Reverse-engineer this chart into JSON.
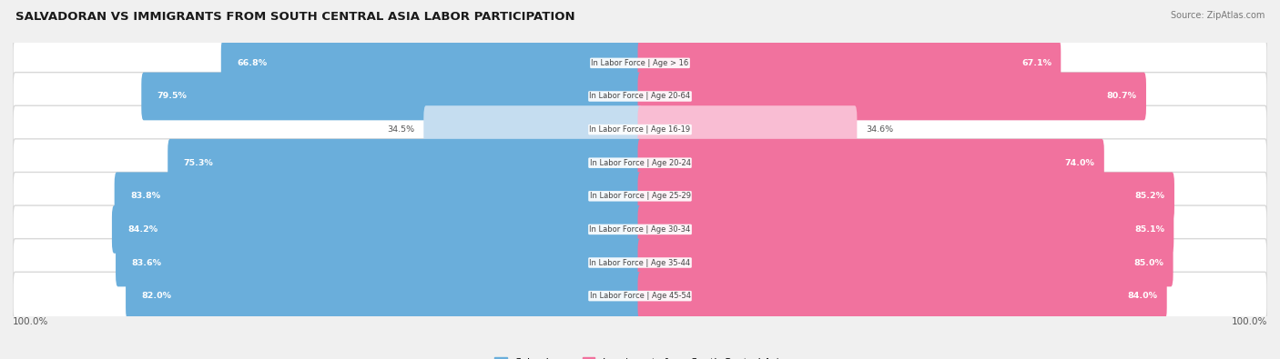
{
  "title": "SALVADORAN VS IMMIGRANTS FROM SOUTH CENTRAL ASIA LABOR PARTICIPATION",
  "source": "Source: ZipAtlas.com",
  "categories": [
    "In Labor Force | Age > 16",
    "In Labor Force | Age 20-64",
    "In Labor Force | Age 16-19",
    "In Labor Force | Age 20-24",
    "In Labor Force | Age 25-29",
    "In Labor Force | Age 30-34",
    "In Labor Force | Age 35-44",
    "In Labor Force | Age 45-54"
  ],
  "salvadoran_values": [
    66.8,
    79.5,
    34.5,
    75.3,
    83.8,
    84.2,
    83.6,
    82.0
  ],
  "immigrant_values": [
    67.1,
    80.7,
    34.6,
    74.0,
    85.2,
    85.1,
    85.0,
    84.0
  ],
  "salvadoran_color": "#6aaedb",
  "salvadoran_color_light": "#c5ddf0",
  "immigrant_color": "#f1729e",
  "immigrant_color_light": "#f9bdd3",
  "background_color": "#f0f0f0",
  "bar_bg_color": "#ffffff",
  "bar_bg_edge_color": "#d8d8d8",
  "max_value": 100.0,
  "legend_salvadoran": "Salvadoran",
  "legend_immigrant": "Immigrants from South Central Asia",
  "label_threshold": 50
}
